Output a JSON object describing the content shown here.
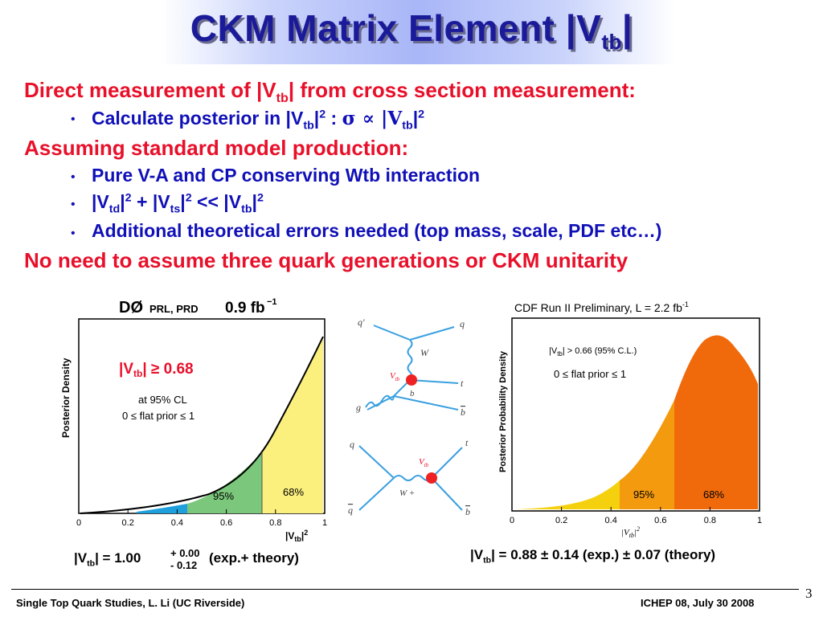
{
  "title": {
    "main": "CKM Matrix Element |V",
    "sub": "tb",
    "end": "|"
  },
  "bullets": {
    "h1_a": "Direct measurement of |V",
    "h1_sub": "tb",
    "h1_b": "| from cross section measurement:",
    "b1_a": "Calculate posterior in |V",
    "b1_sub": "tb",
    "b1_sup": "2",
    "b1_b": " : ",
    "b1_sigma": "σ ∝ |V",
    "b1_sub2": "tb",
    "b1_end": "|",
    "b1_sup2": "2",
    "h2": "Assuming standard model production:",
    "b2": "Pure V-A and CP conserving Wtb interaction",
    "b3_a": "|V",
    "b3_s1": "td",
    "b3_b": "|",
    "b3_p1": "2",
    "b3_c": " + |V",
    "b3_s2": "ts",
    "b3_d": "|",
    "b3_p2": "2",
    "b3_e": " << |V",
    "b3_s3": "tb",
    "b3_f": "|",
    "b3_p3": "2",
    "b4": "Additional theoretical errors needed (top mass, scale, PDF etc…)",
    "h3": "No need to assume three quark generations or CKM unitarity"
  },
  "d0_plot": {
    "header_a": "DØ",
    "header_b": "PRL, PRD",
    "header_c": "0.9 fb",
    "header_sup": "−1",
    "ylabel": "Posterior Density",
    "result_a": "|V",
    "result_sub": "tb",
    "result_b": "| ≥ 0.68",
    "cl": "at 95% CL",
    "prior": "0 ≤ flat prior ≤ 1",
    "band95": "95%",
    "band68": "68%",
    "xlabel_a": "|V",
    "xlabel_sub": "tb",
    "xlabel_b": "|",
    "xlabel_sup": "2",
    "ticks": [
      "0",
      "0.2",
      "0.4",
      "0.6",
      "0.8",
      "1"
    ]
  },
  "cdf_plot": {
    "header_a": "CDF Run II Preliminary, L = 2.2 fb",
    "header_sup": "-1",
    "ylabel": "Posterior Probability Density",
    "limit_a": "|V",
    "limit_sub": "tb",
    "limit_b": "| > 0.66 (95% C.L.)",
    "prior": "0 ≤ flat prior ≤ 1",
    "band95": "95%",
    "band68": "68%",
    "xlabel_a": "|V",
    "xlabel_sub": "tb",
    "xlabel_b": "|",
    "xlabel_sup": "2",
    "ticks": [
      "0",
      "0.2",
      "0.4",
      "0.6",
      "0.8",
      "1"
    ]
  },
  "feynman": {
    "top": {
      "q1": "q'",
      "q2": "q",
      "w": "W",
      "vtb": "V",
      "vtb_sub": "tb",
      "t": "t",
      "b": "b",
      "g": "g",
      "bbar": "b"
    },
    "bottom": {
      "q": "q",
      "qbar": "q",
      "t": "t",
      "bbar": "b",
      "w": "W +",
      "vtb": "V",
      "vtb_sub": "tb"
    }
  },
  "results": {
    "d0_a": "|V",
    "d0_sub": "tb",
    "d0_b": "| = 1.00",
    "d0_up": "+ 0.00",
    "d0_down": "- 0.12",
    "d0_c": " (exp.+ theory)",
    "cdf_a": "|V",
    "cdf_sub": "tb",
    "cdf_b": "| = 0.88 ± 0.14 (exp.) ± 0.07 (theory)"
  },
  "footer": {
    "left": "Single Top Quark Studies, L. Li (UC Riverside)",
    "right": "ICHEP 08,  July 30 2008",
    "page": "3"
  },
  "colors": {
    "title": "#1b1b9a",
    "red": "#e8102a",
    "blue": "#1010b8"
  }
}
